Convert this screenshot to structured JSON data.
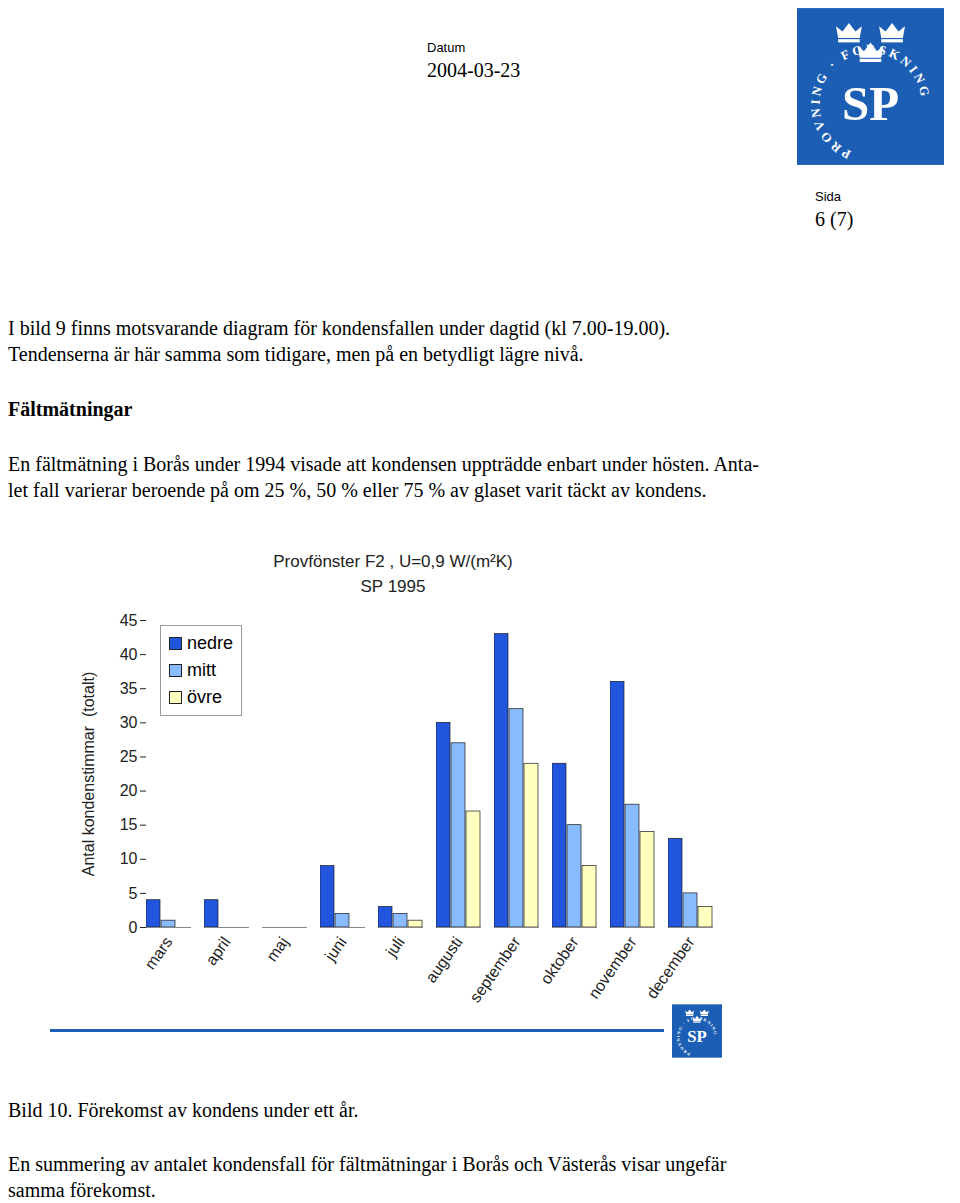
{
  "header": {
    "date_label": "Datum",
    "date": "2004-03-23",
    "page_label": "Sida",
    "page": "6 (7)"
  },
  "logo": {
    "text": "SP",
    "ring": "PROVNING · FORSKNING"
  },
  "intro": [
    "I bild 9 finns motsvarande diagram för kondensfallen under dagtid (kl 7.00-19.00).",
    "Tendenserna är här samma som tidigare, men på en betydligt lägre nivå."
  ],
  "heading": "Fältmätningar",
  "paragraph": [
    "En fältmätning i Borås under 1994 visade att kondensen uppträdde enbart under hösten. Anta-",
    "let fall varierar beroende på om 25 %, 50 % eller 75 % av glaset varit täckt av kondens."
  ],
  "chart_data": {
    "type": "bar",
    "title": "Provfönster F2 , U=0,9 W/(m²K)",
    "subtitle": "SP 1995",
    "y_label": "Antal kondenstimmar  (totalt)",
    "categories": [
      "mars",
      "april",
      "maj",
      "juni",
      "juli",
      "augusti",
      "september",
      "oktober",
      "november",
      "december"
    ],
    "series": [
      {
        "name": "nedre",
        "color": "#2255dd",
        "values": [
          4,
          4,
          0,
          9,
          3,
          30,
          43,
          24,
          36,
          13
        ]
      },
      {
        "name": "mitt",
        "color": "#88bbff",
        "values": [
          1,
          0,
          0,
          2,
          2,
          27,
          32,
          15,
          18,
          5
        ]
      },
      {
        "name": "övre",
        "color": "#ffffc0",
        "values": [
          0,
          0,
          0,
          0,
          1,
          17,
          24,
          9,
          14,
          3
        ]
      }
    ],
    "ylim": [
      0,
      45
    ],
    "yticks": [
      0,
      5,
      10,
      15,
      20,
      25,
      30,
      35,
      40,
      45
    ],
    "grid": false,
    "legend": "upper left"
  },
  "caption": "Bild 10. Förekomst av kondens under ett år.",
  "closing": [
    "En summering av antalet kondensfall för fältmätningar i Borås och Västerås visar ungefär",
    "samma förekomst."
  ]
}
